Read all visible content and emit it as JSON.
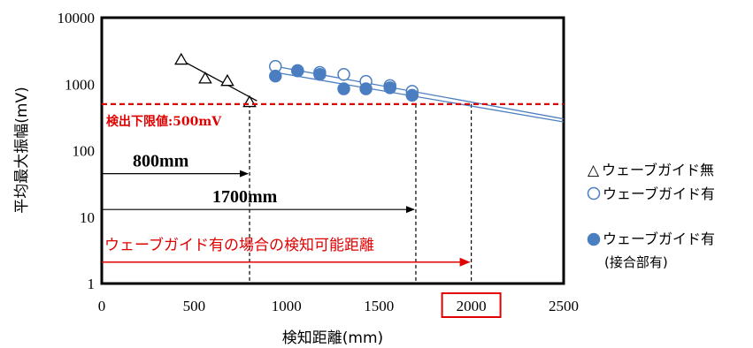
{
  "chart_data": {
    "type": "scatter",
    "title": "",
    "xlabel": "検知距離(mm)",
    "ylabel": "平均最大振幅(mV)",
    "xlim": [
      0,
      2500
    ],
    "ylim": [
      1,
      10000
    ],
    "y_scale": "log",
    "x_ticks": [
      "0",
      "500",
      "1000",
      "1500",
      "2000",
      "2500"
    ],
    "y_ticks": [
      "1",
      "10",
      "100",
      "1000",
      "10000"
    ],
    "highlighted_x_tick": "2000",
    "grid": false,
    "legend_position": "right",
    "series": [
      {
        "name": "ウェーブガイド無",
        "marker": "triangle-open",
        "color": "#000000",
        "points": [
          [
            430,
            2300
          ],
          [
            560,
            1200
          ],
          [
            680,
            1100
          ],
          [
            800,
            530
          ]
        ],
        "trendline": [
          [
            430,
            2300
          ],
          [
            840,
            560
          ]
        ]
      },
      {
        "name": "ウェーブガイド有",
        "marker": "circle-open",
        "color": "#4a7ec0",
        "points": [
          [
            940,
            1850
          ],
          [
            1060,
            1600
          ],
          [
            1180,
            1500
          ],
          [
            1310,
            1400
          ],
          [
            1430,
            1100
          ],
          [
            1560,
            950
          ],
          [
            1680,
            780
          ]
        ],
        "trendline": [
          [
            940,
            1850
          ],
          [
            2500,
            300
          ]
        ]
      },
      {
        "name": "ウェーブガイド有",
        "name_line2": "(接合部有)",
        "marker": "circle-filled",
        "color": "#4a7ec0",
        "points": [
          [
            940,
            1320
          ],
          [
            1060,
            1580
          ],
          [
            1180,
            1400
          ],
          [
            1310,
            850
          ],
          [
            1430,
            850
          ],
          [
            1560,
            880
          ],
          [
            1680,
            680
          ]
        ],
        "trendline": [
          [
            940,
            1500
          ],
          [
            2500,
            270
          ]
        ]
      }
    ],
    "reference_line": {
      "y": 500,
      "label": "検出下限値:500mV",
      "color": "#e00000"
    },
    "vertical_markers": [
      800,
      1700,
      2000
    ],
    "annotations": [
      {
        "text": "800mm",
        "arrow_from_x": 0,
        "arrow_to_x": 800,
        "arrow_y": 45,
        "color": "#000000"
      },
      {
        "text": "1700mm",
        "arrow_from_x": 0,
        "arrow_to_x": 1700,
        "arrow_y": 13,
        "color": "#000000"
      },
      {
        "text": "ウェーブガイド有の場合の検知可能距離",
        "arrow_from_x": 0,
        "arrow_to_x": 2000,
        "arrow_y": 2.1,
        "color": "#e00000"
      }
    ]
  }
}
